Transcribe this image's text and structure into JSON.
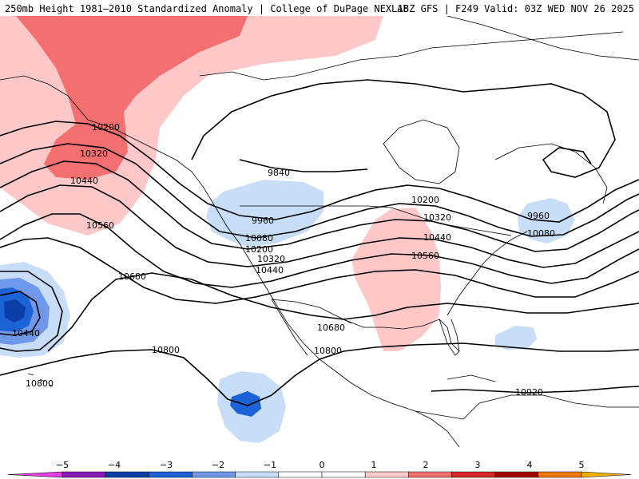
{
  "header": {
    "left_title": "250mb Height 1981–2010 Standardized Anomaly | College of DuPage NEXLAB",
    "right_title": "18Z GFS | F249 Valid: 03Z WED NOV 26 2025"
  },
  "contour_labels": [
    {
      "id": "l10200a",
      "text": "10200"
    },
    {
      "id": "l10320a",
      "text": "10320"
    },
    {
      "id": "l10440a",
      "text": "10440"
    },
    {
      "id": "l10560a",
      "text": "10560"
    },
    {
      "id": "l10680a",
      "text": "10680"
    },
    {
      "id": "l10440b",
      "text": "10440"
    },
    {
      "id": "l10800a",
      "text": "10800"
    },
    {
      "id": "l10800b",
      "text": "10800"
    },
    {
      "id": "l9840",
      "text": "9840"
    },
    {
      "id": "l9960a",
      "text": "9960"
    },
    {
      "id": "l10080a",
      "text": "10080"
    },
    {
      "id": "l10200b",
      "text": "10200"
    },
    {
      "id": "l10320b",
      "text": "10320"
    },
    {
      "id": "l10440c",
      "text": "10440"
    },
    {
      "id": "l10200c",
      "text": "10200"
    },
    {
      "id": "l10320c",
      "text": "10320"
    },
    {
      "id": "l10440d",
      "text": "10440"
    },
    {
      "id": "l10560b",
      "text": "10560"
    },
    {
      "id": "l10680b",
      "text": "10680"
    },
    {
      "id": "l10800c",
      "text": "10800"
    },
    {
      "id": "l9960b",
      "text": "9960"
    },
    {
      "id": "l10080b",
      "text": "10080"
    },
    {
      "id": "l10920",
      "text": "10920"
    }
  ],
  "colorbar": {
    "ticks": [
      "−5",
      "−4",
      "−3",
      "−2",
      "−1",
      "0",
      "1",
      "2",
      "3",
      "4",
      "5"
    ],
    "colors": [
      "#e040e0",
      "#8a1ab8",
      "#0b3ea8",
      "#1d63d8",
      "#6f98ea",
      "#c8def8",
      "#ffffff",
      "#ffffff",
      "#ffc8c8",
      "#f47070",
      "#d42828",
      "#a00000",
      "#f07800",
      "#f0b000"
    ]
  }
}
